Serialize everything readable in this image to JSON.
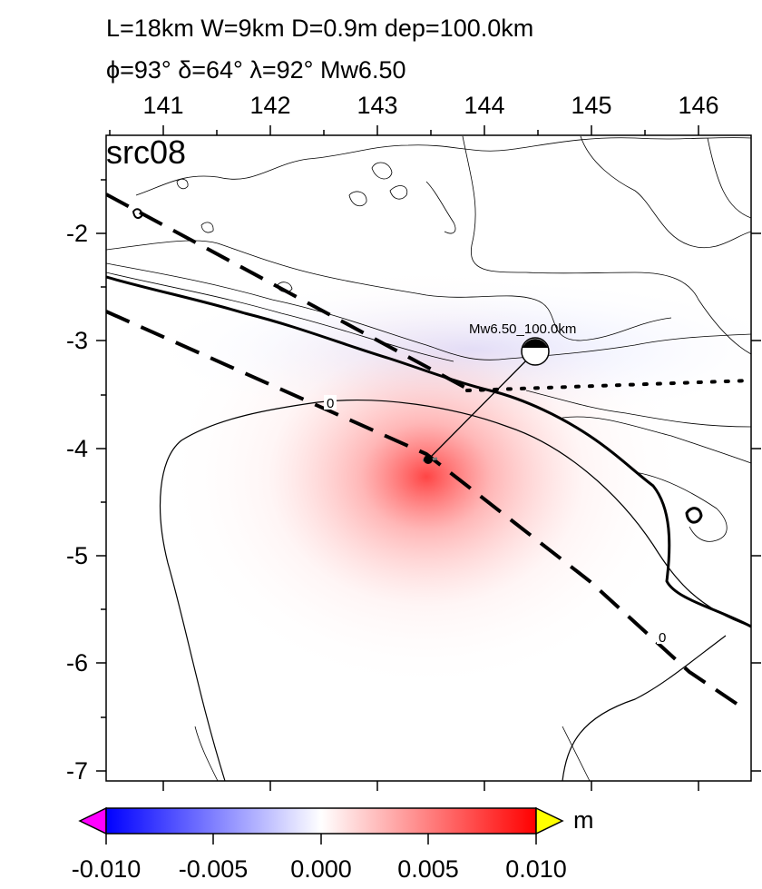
{
  "header": {
    "line1": "L=18km W=9km D=0.9m dep=100.0km",
    "line2": "ϕ=93° δ=64° λ=92° Mw6.50"
  },
  "map": {
    "panel_label": "src08",
    "lon_ticks": [
      "141",
      "142",
      "143",
      "144",
      "145",
      "146"
    ],
    "lat_ticks": [
      "-2",
      "-3",
      "-4",
      "-5",
      "-6",
      "-7"
    ],
    "event_label": "Mw6.50_100.0km",
    "contour_label_a": "0",
    "contour_label_b": "0",
    "fault_color": "#000000",
    "anomaly_color": "#ff3030",
    "negative_tint": "#e6e8ff"
  },
  "colorbar": {
    "unit": "m",
    "ticks": [
      "-0.010",
      "-0.005",
      "0.000",
      "0.005",
      "0.010"
    ],
    "low_color": "#0000ff",
    "mid_color": "#ffffff",
    "high_color": "#ff0000",
    "under_color": "#ff00ff",
    "over_color": "#ffff00"
  }
}
